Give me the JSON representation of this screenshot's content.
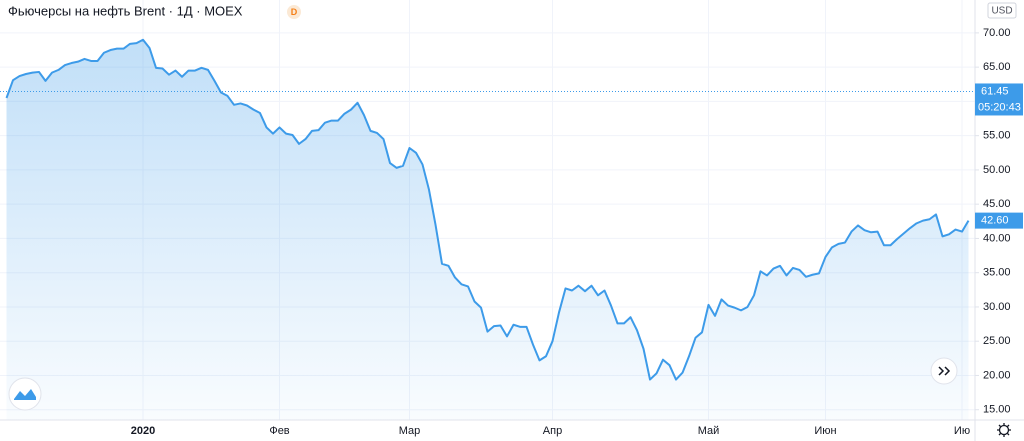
{
  "chart_data": {
    "type": "area",
    "title": "Фьючерсы на нефть Brent · 1Д · MOEX",
    "badge": "D",
    "currency": "USD",
    "color": "#3d9be9",
    "grid": true,
    "values": [
      60.5,
      63.1,
      63.7,
      64.0,
      64.2,
      64.3,
      63.0,
      64.2,
      64.6,
      65.3,
      65.6,
      65.8,
      66.2,
      65.9,
      65.9,
      67.1,
      67.5,
      67.7,
      67.7,
      68.4,
      68.5,
      69.0,
      67.8,
      64.9,
      64.8,
      63.9,
      64.5,
      63.6,
      64.5,
      64.5,
      64.9,
      64.6,
      63.0,
      61.3,
      60.8,
      59.5,
      59.7,
      59.4,
      58.8,
      58.3,
      56.2,
      55.3,
      56.2,
      55.3,
      55.1,
      53.8,
      54.5,
      55.7,
      55.8,
      56.9,
      57.2,
      57.2,
      58.2,
      58.8,
      59.8,
      58.0,
      55.7,
      55.4,
      54.5,
      51.0,
      50.3,
      50.6,
      53.2,
      52.5,
      50.8,
      47.1,
      42.0,
      36.3,
      36.0,
      34.3,
      33.3,
      33.0,
      30.8,
      29.9,
      26.4,
      27.2,
      27.3,
      25.7,
      27.4,
      27.1,
      27.1,
      24.5,
      22.2,
      22.8,
      25.0,
      29.2,
      32.7,
      32.4,
      33.1,
      32.3,
      33.1,
      31.7,
      32.4,
      30.2,
      27.6,
      27.6,
      28.5,
      26.6,
      23.9,
      19.4,
      20.3,
      22.3,
      21.5,
      19.4,
      20.4,
      22.8,
      25.5,
      26.3,
      30.3,
      28.7,
      31.1,
      30.2,
      29.9,
      29.5,
      30.0,
      31.7,
      35.2,
      34.6,
      35.6,
      36.0,
      34.6,
      35.7,
      35.4,
      34.4,
      34.7,
      34.9,
      37.3,
      38.7,
      39.2,
      39.4,
      41.0,
      41.9,
      41.2,
      40.9,
      41.0,
      39.0,
      39.0,
      39.9,
      40.7,
      41.5,
      42.2,
      42.6,
      42.8,
      43.5,
      40.3,
      40.6,
      41.3,
      41.0,
      42.6
    ],
    "xlim": [
      -1,
      149
    ],
    "xticks": [
      {
        "value": 21,
        "label": "2020"
      },
      {
        "value": 42,
        "label": "Фев"
      },
      {
        "value": 62,
        "label": "Мар"
      },
      {
        "value": 84,
        "label": "Апр"
      },
      {
        "value": 108,
        "label": "Май"
      },
      {
        "value": 126,
        "label": "Июн"
      },
      {
        "value": 147,
        "label": "Ию"
      }
    ],
    "ylim": [
      13.5,
      74.8
    ],
    "yticks": [
      {
        "value": 15,
        "label": "15.00"
      },
      {
        "value": 20,
        "label": "20.00"
      },
      {
        "value": 25,
        "label": "25.00"
      },
      {
        "value": 30,
        "label": "30.00"
      },
      {
        "value": 35,
        "label": "35.00"
      },
      {
        "value": 40,
        "label": "40.00"
      },
      {
        "value": 45,
        "label": "45.00"
      },
      {
        "value": 50,
        "label": "50.00"
      },
      {
        "value": 55,
        "label": "55.00"
      },
      {
        "value": 60,
        "label": "60.00"
      },
      {
        "value": 65,
        "label": "65.00"
      },
      {
        "value": 70,
        "label": "70.00"
      }
    ],
    "reference_line": {
      "value": 61.45,
      "label": "61.45",
      "sublabel": "05:20:43"
    },
    "last_price": {
      "value": 42.6,
      "label": "42.60"
    }
  }
}
